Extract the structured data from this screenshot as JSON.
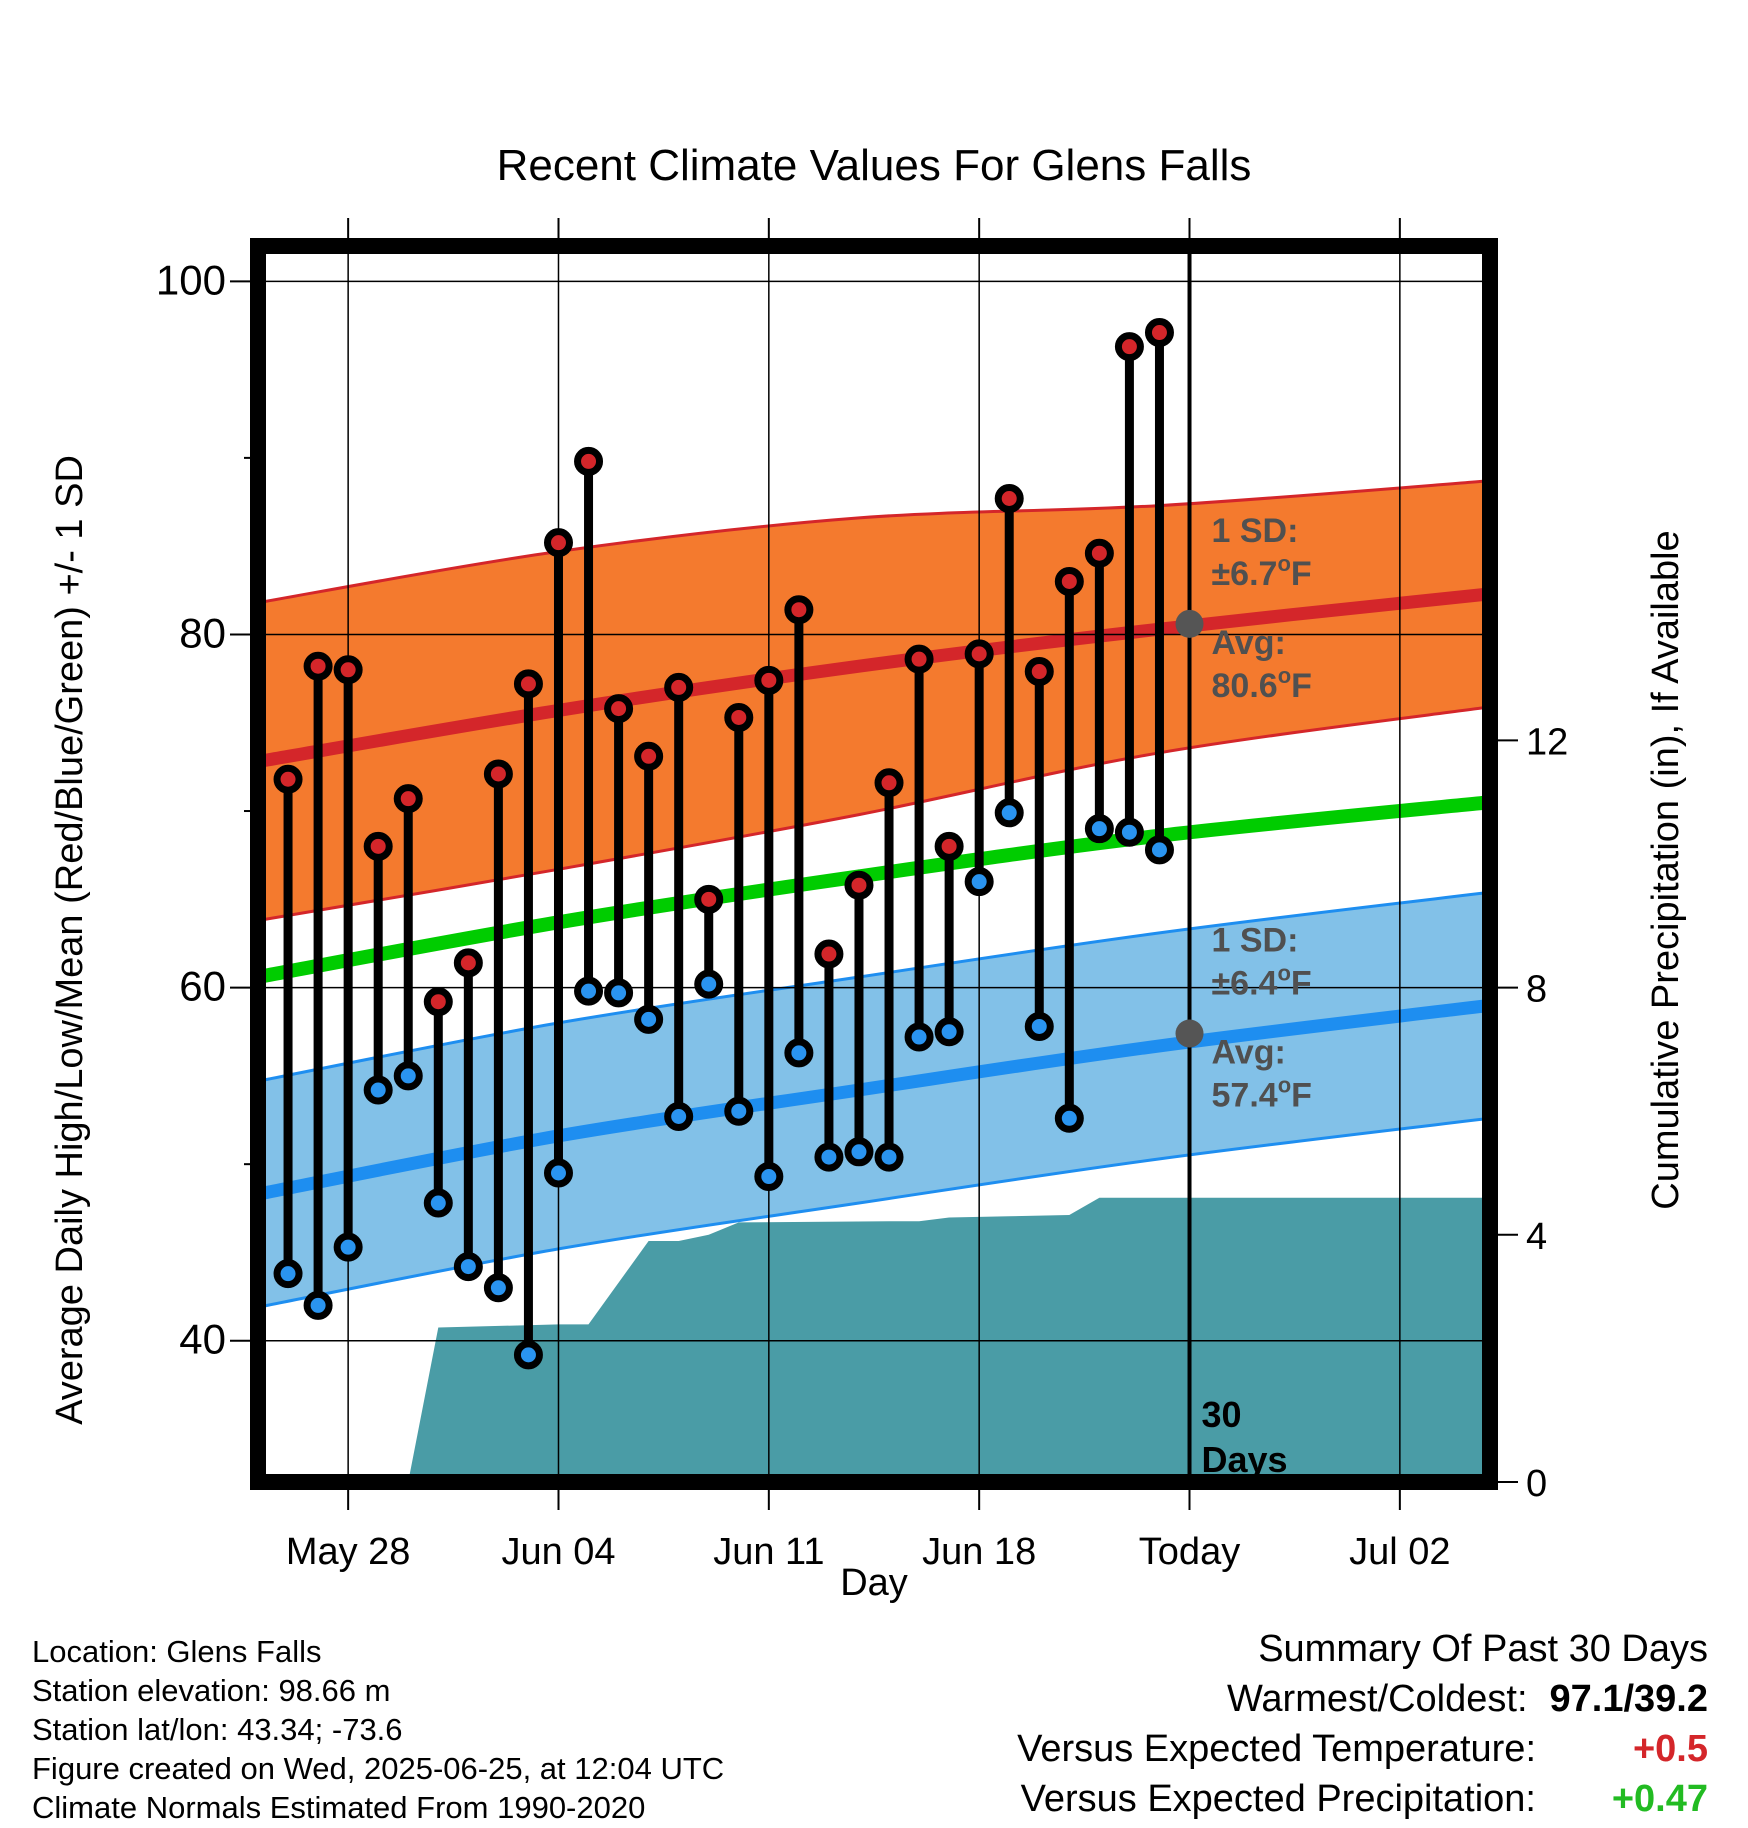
{
  "chart_data": {
    "type": "climate-summary",
    "title": "Recent Climate Values For Glens Falls",
    "xlabel": "Day",
    "ylabel_left": "Average Daily High/Low/Mean (Red/Blue/Green) +/- 1 SD",
    "ylabel_right": "Cumulative Precipitation (in), If Available",
    "x_range": [
      "2025-05-25",
      "2025-07-05"
    ],
    "ylim_left": [
      32,
      102
    ],
    "ylim_right": [
      0,
      20
    ],
    "left_ticks": [
      {
        "value": 40,
        "label": "40"
      },
      {
        "value": 60,
        "label": "60"
      },
      {
        "value": 80,
        "label": "80"
      },
      {
        "value": 100,
        "label": "100"
      }
    ],
    "left_minor_ticks": [
      50,
      70,
      90
    ],
    "right_ticks": [
      {
        "value": 0,
        "label": "0"
      },
      {
        "value": 4,
        "label": "4"
      },
      {
        "value": 8,
        "label": "8"
      },
      {
        "value": 12,
        "label": "12"
      }
    ],
    "x_ticks": [
      {
        "date": "2025-05-28",
        "label": "May 28"
      },
      {
        "date": "2025-06-04",
        "label": "Jun 04"
      },
      {
        "date": "2025-06-11",
        "label": "Jun 11"
      },
      {
        "date": "2025-06-18",
        "label": "Jun 18"
      },
      {
        "date": "2025-06-25",
        "label": "Today"
      },
      {
        "date": "2025-07-02",
        "label": "Jul 02"
      }
    ],
    "today": "2025-06-25",
    "today_label_1": "30",
    "today_label_2": "Days",
    "normals": {
      "dates": [
        "2025-05-25",
        "2025-06-04",
        "2025-06-14",
        "2025-06-24",
        "2025-07-05"
      ],
      "high_avg": [
        72.8,
        75.7,
        78.2,
        80.3,
        82.3
      ],
      "high_sd": [
        9.0,
        9.0,
        8.4,
        7.0,
        6.4
      ],
      "low_avg": [
        48.3,
        51.6,
        54.2,
        56.7,
        59.0
      ],
      "low_sd": [
        6.4,
        6.4,
        6.4,
        6.4,
        6.4
      ],
      "mean": [
        60.6,
        63.7,
        66.3,
        68.6,
        70.5
      ]
    },
    "colors": {
      "high_band": "#f47a2e",
      "high_line": "#d4262a",
      "low_band": "#82c1e8",
      "low_line": "#1e8ef0",
      "mean_line": "#00cc00",
      "precip": "#4a9ca6",
      "high_dot": "#d4262a",
      "low_dot": "#2a94f0",
      "today_marker": "#555555",
      "plus_red": "#d4262a",
      "plus_green": "#22bb22"
    },
    "high_annotation": {
      "line1": "1 SD:",
      "line2": "±6.7",
      "unit": "F",
      "line3": "Avg:",
      "line4": "80.6",
      "avg_value": 80.6
    },
    "low_annotation": {
      "line1": "1 SD:",
      "line2": "±6.4",
      "unit": "F",
      "line3": "Avg:",
      "line4": "57.4",
      "avg_value": 57.4
    },
    "degree_symbol": "o",
    "daily": [
      {
        "date": "2025-05-26",
        "high": 71.8,
        "low": 43.8
      },
      {
        "date": "2025-05-27",
        "high": 78.2,
        "low": 42.0
      },
      {
        "date": "2025-05-28",
        "high": 78.0,
        "low": 45.3
      },
      {
        "date": "2025-05-29",
        "high": 68.0,
        "low": 54.2
      },
      {
        "date": "2025-05-30",
        "high": 70.7,
        "low": 55.0
      },
      {
        "date": "2025-05-31",
        "high": 59.2,
        "low": 47.8
      },
      {
        "date": "2025-06-01",
        "high": 61.4,
        "low": 44.2
      },
      {
        "date": "2025-06-02",
        "high": 72.1,
        "low": 43.0
      },
      {
        "date": "2025-06-03",
        "high": 77.2,
        "low": 39.2
      },
      {
        "date": "2025-06-04",
        "high": 85.2,
        "low": 49.5
      },
      {
        "date": "2025-06-05",
        "high": 89.8,
        "low": 59.8
      },
      {
        "date": "2025-06-06",
        "high": 75.8,
        "low": 59.7
      },
      {
        "date": "2025-06-07",
        "high": 73.1,
        "low": 58.2
      },
      {
        "date": "2025-06-08",
        "high": 77.0,
        "low": 52.7
      },
      {
        "date": "2025-06-09",
        "high": 65.0,
        "low": 60.2
      },
      {
        "date": "2025-06-10",
        "high": 75.3,
        "low": 53.0
      },
      {
        "date": "2025-06-11",
        "high": 77.4,
        "low": 49.3
      },
      {
        "date": "2025-06-12",
        "high": 81.4,
        "low": 56.3
      },
      {
        "date": "2025-06-13",
        "high": 61.9,
        "low": 50.4
      },
      {
        "date": "2025-06-14",
        "high": 65.8,
        "low": 50.7
      },
      {
        "date": "2025-06-15",
        "high": 71.6,
        "low": 50.4
      },
      {
        "date": "2025-06-16",
        "high": 78.6,
        "low": 57.2
      },
      {
        "date": "2025-06-17",
        "high": 68.0,
        "low": 57.5
      },
      {
        "date": "2025-06-18",
        "high": 78.9,
        "low": 66.0
      },
      {
        "date": "2025-06-19",
        "high": 87.7,
        "low": 69.9
      },
      {
        "date": "2025-06-20",
        "high": 77.9,
        "low": 57.8
      },
      {
        "date": "2025-06-21",
        "high": 83.0,
        "low": 52.6
      },
      {
        "date": "2025-06-22",
        "high": 84.6,
        "low": 69.0
      },
      {
        "date": "2025-06-23",
        "high": 96.3,
        "low": 68.8
      },
      {
        "date": "2025-06-24",
        "high": 97.1,
        "low": 67.8
      }
    ],
    "precip_cumulative": [
      {
        "date": "2025-05-29",
        "value": 0.0
      },
      {
        "date": "2025-05-30",
        "value": 0.0
      },
      {
        "date": "2025-05-31",
        "value": 2.5
      },
      {
        "date": "2025-06-04",
        "value": 2.55
      },
      {
        "date": "2025-06-05",
        "value": 2.55
      },
      {
        "date": "2025-06-07",
        "value": 3.9
      },
      {
        "date": "2025-06-08",
        "value": 3.9
      },
      {
        "date": "2025-06-09",
        "value": 4.0
      },
      {
        "date": "2025-06-10",
        "value": 4.2
      },
      {
        "date": "2025-06-15",
        "value": 4.22
      },
      {
        "date": "2025-06-16",
        "value": 4.22
      },
      {
        "date": "2025-06-17",
        "value": 4.28
      },
      {
        "date": "2025-06-19",
        "value": 4.3
      },
      {
        "date": "2025-06-21",
        "value": 4.32
      },
      {
        "date": "2025-06-22",
        "value": 4.6
      },
      {
        "date": "2025-07-05",
        "value": 4.6
      }
    ]
  },
  "footer_left": {
    "line1": "Location: Glens Falls",
    "line2": "Station elevation: 98.66 m",
    "line3": "Station lat/lon: 43.34; -73.6",
    "line4": "Figure created on Wed, 2025-06-25, at 12:04 UTC",
    "line5": "Climate Normals Estimated From 1990-2020"
  },
  "footer_right": {
    "heading": "Summary Of Past 30 Days",
    "warm_label": "Warmest/Coldest:",
    "warm_value": "97.1/39.2",
    "temp_label": "Versus Expected Temperature:",
    "temp_value": "+0.5",
    "precip_label": "Versus Expected Precipitation:",
    "precip_value": "+0.47"
  }
}
